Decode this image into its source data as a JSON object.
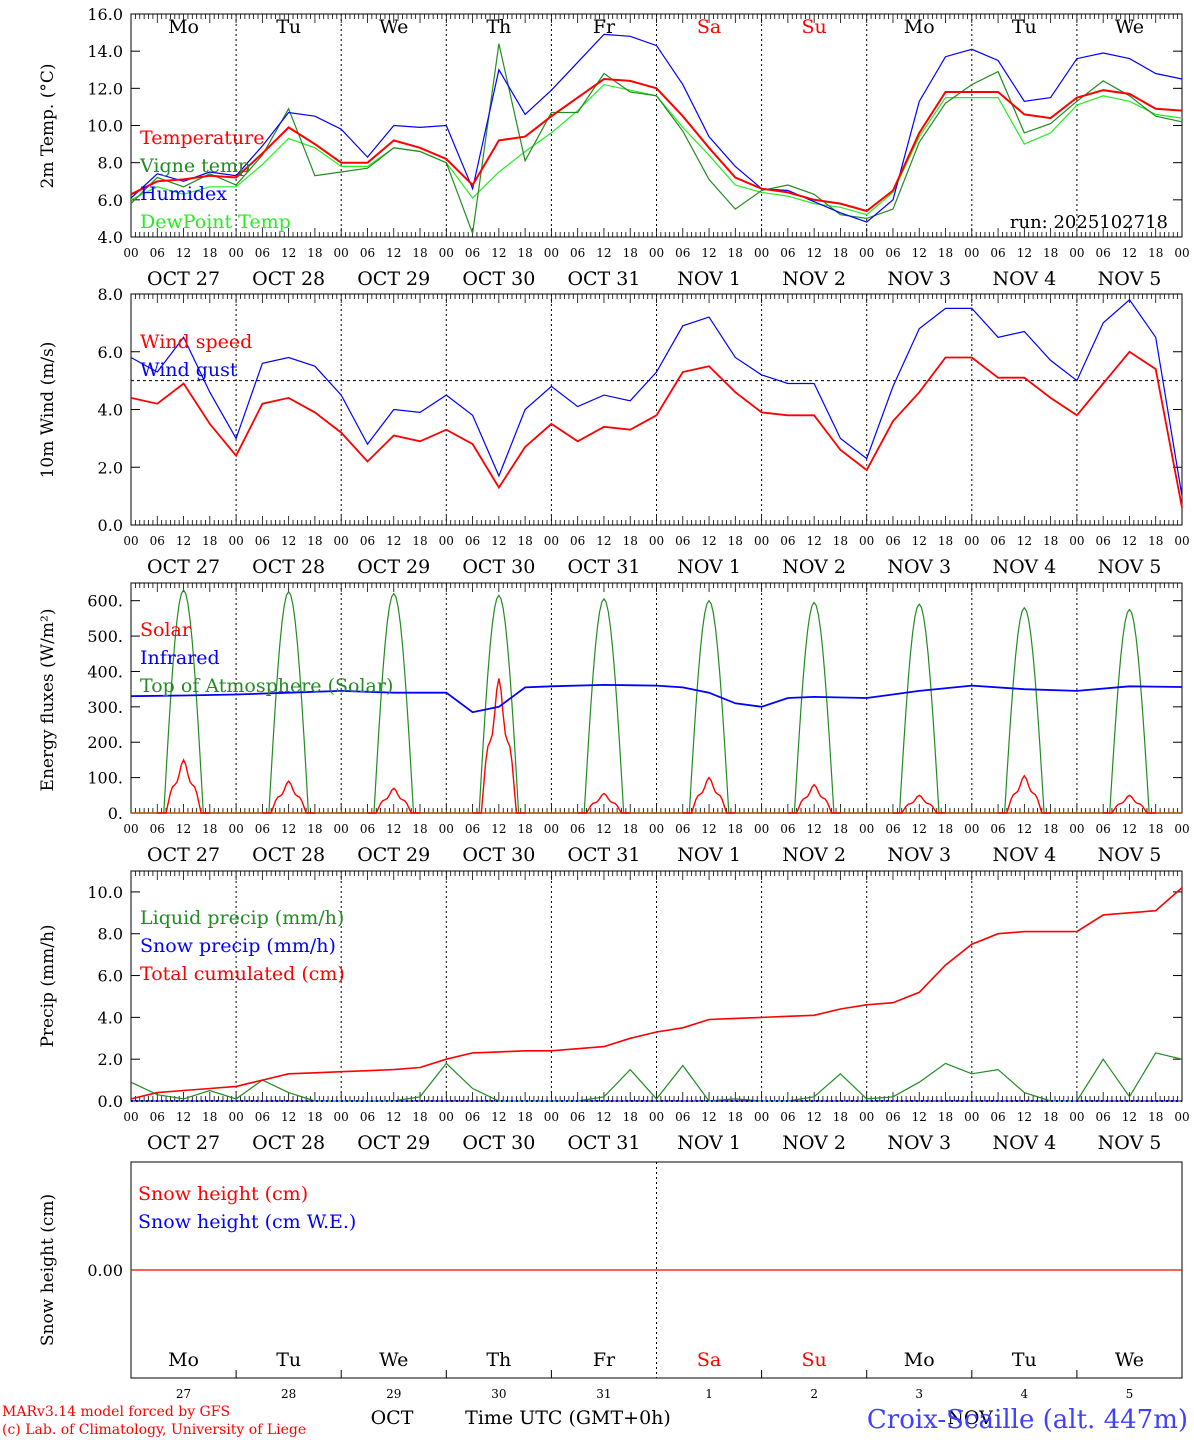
{
  "chart_data": [
    {
      "type": "line",
      "id": "temp",
      "ylabel": "2m Temp. (°C)",
      "ylim": [
        4.0,
        16.0
      ],
      "yticks": [
        4.0,
        6.0,
        8.0,
        10.0,
        12.0,
        14.0,
        16.0
      ],
      "ytick_labels": [
        "4.0",
        "6.0",
        "8.0",
        "10.0",
        "12.0",
        "14.0",
        "16.0"
      ],
      "run_label": "run: 2025102718",
      "x_hours": [
        0,
        6,
        12,
        18,
        24,
        30,
        36,
        42,
        48,
        54,
        60,
        66,
        72,
        78,
        84,
        90,
        96,
        102,
        108,
        114,
        120,
        126,
        132,
        138,
        144,
        150,
        156,
        162,
        168,
        174,
        180,
        186,
        192,
        198,
        204,
        210,
        216,
        222,
        228,
        234,
        240
      ],
      "series": [
        {
          "name": "Temperature",
          "color": "#ff0000",
          "values": [
            6.3,
            7.0,
            7.1,
            7.3,
            7.2,
            8.5,
            9.9,
            9.0,
            8.0,
            8.0,
            9.2,
            8.8,
            8.2,
            6.8,
            9.2,
            9.4,
            10.5,
            11.5,
            12.5,
            12.4,
            12.0,
            10.5,
            8.8,
            7.2,
            6.6,
            6.4,
            6.0,
            5.8,
            5.4,
            6.5,
            9.6,
            11.8,
            11.8,
            11.8,
            10.6,
            10.4,
            11.5,
            11.9,
            11.7,
            10.9,
            10.8
          ]
        },
        {
          "name": "Vigne temp",
          "color": "#228b22",
          "values": [
            5.8,
            7.2,
            6.7,
            7.4,
            6.8,
            8.4,
            10.9,
            7.3,
            7.5,
            7.7,
            8.8,
            8.6,
            8.0,
            4.2,
            14.4,
            8.1,
            10.7,
            10.7,
            12.8,
            11.8,
            11.6,
            9.7,
            7.1,
            5.5,
            6.5,
            6.8,
            6.3,
            5.2,
            5.0,
            5.5,
            9.1,
            11.2,
            12.2,
            12.9,
            9.6,
            10.1,
            11.3,
            12.4,
            11.6,
            10.5,
            10.2
          ]
        },
        {
          "name": "Humidex",
          "color": "#0000ff",
          "values": [
            6.1,
            7.4,
            7.0,
            7.5,
            7.3,
            8.9,
            10.7,
            10.5,
            9.8,
            8.3,
            10.0,
            9.9,
            10.0,
            6.6,
            13.0,
            10.6,
            11.9,
            13.4,
            14.9,
            14.8,
            14.3,
            12.2,
            9.4,
            7.8,
            6.6,
            6.5,
            5.9,
            5.3,
            4.8,
            6.0,
            11.3,
            13.7,
            14.1,
            13.5,
            11.3,
            11.5,
            13.6,
            13.9,
            13.6,
            12.8,
            12.5
          ]
        },
        {
          "name": "DewPoint Temp",
          "color": "#22ee22",
          "values": [
            6.0,
            6.7,
            6.3,
            6.7,
            6.7,
            7.9,
            9.3,
            8.8,
            7.8,
            7.8,
            8.8,
            8.6,
            8.0,
            6.1,
            7.5,
            8.6,
            9.6,
            10.8,
            12.2,
            11.9,
            11.6,
            9.9,
            8.4,
            6.8,
            6.4,
            6.2,
            5.8,
            5.6,
            5.2,
            6.4,
            9.4,
            11.5,
            11.5,
            11.5,
            9.0,
            9.6,
            11.1,
            11.6,
            11.3,
            10.6,
            10.4
          ]
        }
      ]
    },
    {
      "type": "line",
      "id": "wind",
      "ylabel": "10m Wind (m/s)",
      "ylim": [
        0.0,
        8.0
      ],
      "yticks": [
        0.0,
        2.0,
        4.0,
        6.0,
        8.0
      ],
      "ytick_labels": [
        "0.0",
        "2.0",
        "4.0",
        "6.0",
        "8.0"
      ],
      "reference_line": 5.0,
      "x_hours": [
        0,
        6,
        12,
        18,
        24,
        30,
        36,
        42,
        48,
        54,
        60,
        66,
        72,
        78,
        84,
        90,
        96,
        102,
        108,
        114,
        120,
        126,
        132,
        138,
        144,
        150,
        156,
        162,
        168,
        174,
        180,
        186,
        192,
        198,
        204,
        210,
        216,
        222,
        228,
        234,
        240
      ],
      "series": [
        {
          "name": "Wind speed",
          "color": "#ff0000",
          "values": [
            4.4,
            4.2,
            4.9,
            3.5,
            2.4,
            4.2,
            4.4,
            3.9,
            3.2,
            2.2,
            3.1,
            2.9,
            3.3,
            2.8,
            1.3,
            2.7,
            3.5,
            2.9,
            3.4,
            3.3,
            3.8,
            5.3,
            5.5,
            4.6,
            3.9,
            3.8,
            3.8,
            2.6,
            1.9,
            3.6,
            4.6,
            5.8,
            5.8,
            5.1,
            5.1,
            4.4,
            3.8,
            4.9,
            6.0,
            5.4,
            0.6
          ]
        },
        {
          "name": "Wind gust",
          "color": "#0000ff",
          "values": [
            5.8,
            5.3,
            6.5,
            4.6,
            3.0,
            5.6,
            5.8,
            5.5,
            4.5,
            2.8,
            4.0,
            3.9,
            4.5,
            3.8,
            1.7,
            4.0,
            4.8,
            4.1,
            4.5,
            4.3,
            5.3,
            6.9,
            7.2,
            5.8,
            5.2,
            4.9,
            4.9,
            3.0,
            2.3,
            4.8,
            6.8,
            7.5,
            7.5,
            6.5,
            6.7,
            5.7,
            5.0,
            7.0,
            7.8,
            6.5,
            1.0
          ]
        }
      ]
    },
    {
      "type": "line",
      "id": "energy",
      "ylabel": "Energy fluxes (W/m²)",
      "ylim": [
        0,
        650
      ],
      "yticks": [
        0,
        100,
        200,
        300,
        400,
        500,
        600
      ],
      "ytick_labels": [
        "0.",
        "100.",
        "200.",
        "300.",
        "400.",
        "500.",
        "600."
      ],
      "peaks_hour": [
        12,
        36,
        60,
        84,
        108,
        132,
        156,
        180,
        204,
        228
      ],
      "series": [
        {
          "name": "Solar",
          "color": "#ff0000",
          "daily_peak": [
            150,
            90,
            70,
            380,
            55,
            100,
            80,
            50,
            105,
            50
          ]
        },
        {
          "name": "Infrared",
          "color": "#0000ff",
          "x_hours": [
            0,
            12,
            24,
            36,
            48,
            60,
            72,
            78,
            84,
            90,
            96,
            108,
            120,
            126,
            132,
            138,
            144,
            150,
            156,
            168,
            180,
            192,
            204,
            216,
            228,
            240
          ],
          "values": [
            330,
            332,
            335,
            340,
            345,
            340,
            340,
            285,
            300,
            355,
            358,
            362,
            360,
            355,
            340,
            310,
            300,
            325,
            328,
            325,
            345,
            360,
            350,
            345,
            358,
            356
          ]
        },
        {
          "name": "Top of Atmosphere (Solar)",
          "color": "#228b22",
          "daily_peak": [
            630,
            625,
            620,
            615,
            605,
            600,
            595,
            590,
            580,
            575
          ]
        }
      ]
    },
    {
      "type": "line",
      "id": "precip",
      "ylabel": "Precip (mm/h)",
      "ylim": [
        0.0,
        11.0
      ],
      "yticks": [
        0.0,
        2.0,
        4.0,
        6.0,
        8.0,
        10.0
      ],
      "ytick_labels": [
        "0.0",
        "2.0",
        "4.0",
        "6.0",
        "8.0",
        "10.0"
      ],
      "x_hours": [
        0,
        6,
        12,
        18,
        24,
        30,
        36,
        42,
        48,
        54,
        60,
        66,
        72,
        78,
        84,
        90,
        96,
        102,
        108,
        114,
        120,
        126,
        132,
        138,
        144,
        150,
        156,
        162,
        168,
        174,
        180,
        186,
        192,
        198,
        204,
        210,
        216,
        222,
        228,
        234,
        240
      ],
      "series": [
        {
          "name": "Liquid precip (mm/h)",
          "color": "#228b22",
          "values": [
            0.9,
            0.3,
            0.1,
            0.5,
            0.1,
            1.0,
            0.4,
            0.0,
            0.0,
            0.0,
            0.0,
            0.2,
            1.8,
            0.6,
            0.0,
            0.0,
            0.0,
            0.0,
            0.2,
            1.5,
            0.1,
            1.7,
            0.0,
            0.1,
            0.0,
            0.0,
            0.2,
            1.3,
            0.1,
            0.2,
            0.9,
            1.8,
            1.3,
            1.5,
            0.4,
            0.0,
            0.0,
            2.0,
            0.2,
            2.3,
            2.0
          ]
        },
        {
          "name": "Snow precip (mm/h)",
          "color": "#0000ff",
          "values": [
            0.0,
            0.0,
            0.0,
            0.0,
            0.0,
            0.0,
            0.0,
            0.0,
            0.0,
            0.0,
            0.0,
            0.0,
            0.0,
            0.0,
            0.0,
            0.0,
            0.0,
            0.0,
            0.0,
            0.0,
            0.0,
            0.0,
            0.0,
            0.0,
            0.0,
            0.0,
            0.0,
            0.0,
            0.0,
            0.0,
            0.0,
            0.0,
            0.0,
            0.0,
            0.0,
            0.0,
            0.0,
            0.0,
            0.0,
            0.0,
            0.0
          ]
        },
        {
          "name": "Total cumulated (cm)",
          "color": "#ff0000",
          "values": [
            0.1,
            0.4,
            0.5,
            0.6,
            0.7,
            1.0,
            1.3,
            1.35,
            1.4,
            1.45,
            1.5,
            1.6,
            2.0,
            2.3,
            2.35,
            2.4,
            2.4,
            2.5,
            2.6,
            3.0,
            3.3,
            3.5,
            3.9,
            3.95,
            4.0,
            4.05,
            4.1,
            4.4,
            4.6,
            4.7,
            5.2,
            6.5,
            7.5,
            8.0,
            8.1,
            8.1,
            8.1,
            8.9,
            9.0,
            9.1,
            10.2
          ]
        }
      ]
    },
    {
      "type": "line",
      "id": "snow",
      "ylabel": "Snow height (cm)",
      "yticks": [
        0.0
      ],
      "ytick_labels": [
        "0.00"
      ],
      "series": [
        {
          "name": "Snow height (cm)",
          "color": "#ff0000",
          "values": [
            0.0,
            0.0
          ]
        },
        {
          "name": "Snow height (cm W.E.)",
          "color": "#0000ff",
          "values": [
            0.0,
            0.0
          ]
        }
      ]
    }
  ],
  "x_axis": {
    "days": [
      "Mo",
      "Tu",
      "We",
      "Th",
      "Fr",
      "Sa",
      "Su",
      "Mo",
      "Tu",
      "We"
    ],
    "weekend_days": [
      "Sa",
      "Su"
    ],
    "hour_labels": [
      "00",
      "06",
      "12",
      "18"
    ],
    "final_hour_label": "00",
    "dates": [
      "OCT 27",
      "OCT 28",
      "OCT 29",
      "OCT 30",
      "OCT 31",
      "NOV  1",
      "NOV  2",
      "NOV  3",
      "NOV  4",
      "NOV  5"
    ],
    "day_numbers": [
      "27",
      "28",
      "29",
      "30",
      "31",
      "1",
      "2",
      "3",
      "4",
      "5"
    ],
    "month_oct": "OCT",
    "month_nov": "NOV",
    "xlabel": "Time UTC (GMT+0h)"
  },
  "footer": {
    "model": "MARv3.14 model forced by GFS",
    "credit": "(c) Lab. of Climatology, University of Liege",
    "station": "Croix-Scaille (alt. 447m)"
  },
  "colors": {
    "temperature": "#ff0000",
    "vigne": "#228b22",
    "humidex": "#0000ff",
    "dewpoint": "#22ee22",
    "weekend": "#ff0000",
    "station": "#4040ff"
  }
}
